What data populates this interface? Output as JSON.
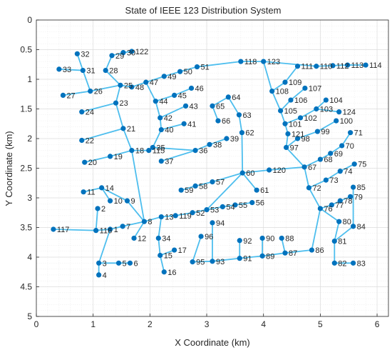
{
  "chart_data": {
    "type": "scatter",
    "title": "State of IEEE 123 Distribution System",
    "xlabel": "X Coordinate (km)",
    "ylabel": "Y Coordinate (km)",
    "xlim": [
      0,
      6.2
    ],
    "ylim": [
      0,
      5
    ],
    "y_reversed": true,
    "xticks": [
      0,
      1,
      2,
      3,
      4,
      5,
      6
    ],
    "yticks": [
      0,
      0.5,
      1,
      1.5,
      2,
      2.5,
      3,
      3.5,
      4,
      4.5,
      5
    ],
    "ytick_labels": [
      "0",
      "0.5",
      "1",
      "1.5",
      "2",
      "2.5",
      "3",
      "3.5",
      "4",
      "4.5",
      "5"
    ],
    "grid": true,
    "minor_grid": true,
    "node_color": "#0072BD",
    "edge_color": "#4DBEEE",
    "nodes": [
      {
        "label": "1",
        "x": 1.3,
        "y": 3.53
      },
      {
        "label": "2",
        "x": 1.08,
        "y": 3.18
      },
      {
        "label": "3",
        "x": 1.1,
        "y": 4.1
      },
      {
        "label": "4",
        "x": 1.1,
        "y": 4.3
      },
      {
        "label": "5",
        "x": 1.45,
        "y": 4.1
      },
      {
        "label": "6",
        "x": 1.65,
        "y": 4.1
      },
      {
        "label": "7",
        "x": 1.52,
        "y": 3.48
      },
      {
        "label": "8",
        "x": 1.9,
        "y": 3.4
      },
      {
        "label": "9",
        "x": 1.6,
        "y": 3.05
      },
      {
        "label": "10",
        "x": 1.3,
        "y": 3.05
      },
      {
        "label": "11",
        "x": 0.83,
        "y": 2.9
      },
      {
        "label": "12",
        "x": 1.72,
        "y": 3.68
      },
      {
        "label": "13",
        "x": 2.2,
        "y": 3.32
      },
      {
        "label": "14",
        "x": 1.15,
        "y": 2.83
      },
      {
        "label": "15",
        "x": 2.18,
        "y": 3.97
      },
      {
        "label": "16",
        "x": 2.25,
        "y": 4.25
      },
      {
        "label": "17",
        "x": 2.43,
        "y": 3.88
      },
      {
        "label": "18",
        "x": 1.68,
        "y": 2.2
      },
      {
        "label": "19",
        "x": 1.3,
        "y": 2.3
      },
      {
        "label": "20",
        "x": 0.85,
        "y": 2.4
      },
      {
        "label": "21",
        "x": 1.53,
        "y": 1.83
      },
      {
        "label": "22",
        "x": 0.8,
        "y": 2.03
      },
      {
        "label": "23",
        "x": 1.4,
        "y": 1.4
      },
      {
        "label": "24",
        "x": 0.8,
        "y": 1.55
      },
      {
        "label": "25",
        "x": 1.48,
        "y": 1.1
      },
      {
        "label": "26",
        "x": 0.95,
        "y": 1.2
      },
      {
        "label": "27",
        "x": 0.47,
        "y": 1.27
      },
      {
        "label": "28",
        "x": 1.22,
        "y": 0.85
      },
      {
        "label": "29",
        "x": 1.33,
        "y": 0.6
      },
      {
        "label": "30",
        "x": 1.53,
        "y": 0.55
      },
      {
        "label": "31",
        "x": 0.82,
        "y": 0.85
      },
      {
        "label": "32",
        "x": 0.72,
        "y": 0.57
      },
      {
        "label": "33",
        "x": 0.4,
        "y": 0.83
      },
      {
        "label": "34",
        "x": 2.15,
        "y": 3.68
      },
      {
        "label": "35",
        "x": 2.05,
        "y": 2.15
      },
      {
        "label": "36",
        "x": 2.8,
        "y": 2.2
      },
      {
        "label": "37",
        "x": 2.2,
        "y": 2.38
      },
      {
        "label": "38",
        "x": 3.05,
        "y": 2.1
      },
      {
        "label": "39",
        "x": 3.35,
        "y": 2.0
      },
      {
        "label": "40",
        "x": 2.2,
        "y": 1.85
      },
      {
        "label": "41",
        "x": 2.6,
        "y": 1.75
      },
      {
        "label": "42",
        "x": 2.18,
        "y": 1.65
      },
      {
        "label": "43",
        "x": 2.63,
        "y": 1.45
      },
      {
        "label": "44",
        "x": 2.1,
        "y": 1.37
      },
      {
        "label": "45",
        "x": 2.43,
        "y": 1.27
      },
      {
        "label": "46",
        "x": 2.73,
        "y": 1.15
      },
      {
        "label": "47",
        "x": 1.93,
        "y": 1.05
      },
      {
        "label": "48",
        "x": 1.68,
        "y": 1.13
      },
      {
        "label": "49",
        "x": 2.25,
        "y": 0.95
      },
      {
        "label": "50",
        "x": 2.53,
        "y": 0.87
      },
      {
        "label": "51",
        "x": 2.83,
        "y": 0.79
      },
      {
        "label": "52",
        "x": 2.75,
        "y": 3.25
      },
      {
        "label": "53",
        "x": 3.0,
        "y": 3.2
      },
      {
        "label": "54",
        "x": 3.28,
        "y": 3.15
      },
      {
        "label": "55",
        "x": 3.5,
        "y": 3.12
      },
      {
        "label": "56",
        "x": 3.8,
        "y": 3.08
      },
      {
        "label": "57",
        "x": 3.1,
        "y": 2.73
      },
      {
        "label": "58",
        "x": 2.8,
        "y": 2.8
      },
      {
        "label": "59",
        "x": 2.55,
        "y": 2.87
      },
      {
        "label": "60",
        "x": 3.63,
        "y": 2.58
      },
      {
        "label": "61",
        "x": 3.88,
        "y": 2.87
      },
      {
        "label": "62",
        "x": 3.62,
        "y": 1.9
      },
      {
        "label": "63",
        "x": 3.57,
        "y": 1.6
      },
      {
        "label": "64",
        "x": 3.38,
        "y": 1.3
      },
      {
        "label": "65",
        "x": 3.1,
        "y": 1.45
      },
      {
        "label": "66",
        "x": 3.2,
        "y": 1.7
      },
      {
        "label": "67",
        "x": 4.72,
        "y": 2.48
      },
      {
        "label": "68",
        "x": 5.0,
        "y": 2.35
      },
      {
        "label": "69",
        "x": 5.18,
        "y": 2.25
      },
      {
        "label": "70",
        "x": 5.38,
        "y": 2.12
      },
      {
        "label": "71",
        "x": 5.53,
        "y": 1.9
      },
      {
        "label": "72",
        "x": 4.8,
        "y": 2.83
      },
      {
        "label": "73",
        "x": 5.1,
        "y": 2.7
      },
      {
        "label": "74",
        "x": 5.35,
        "y": 2.55
      },
      {
        "label": "75",
        "x": 5.6,
        "y": 2.43
      },
      {
        "label": "76",
        "x": 5.0,
        "y": 3.18
      },
      {
        "label": "77",
        "x": 5.2,
        "y": 3.12
      },
      {
        "label": "78",
        "x": 5.35,
        "y": 3.05
      },
      {
        "label": "79",
        "x": 5.53,
        "y": 2.98
      },
      {
        "label": "80",
        "x": 5.33,
        "y": 3.4
      },
      {
        "label": "81",
        "x": 5.25,
        "y": 3.73
      },
      {
        "label": "82",
        "x": 5.25,
        "y": 4.1
      },
      {
        "label": "83",
        "x": 5.58,
        "y": 4.1
      },
      {
        "label": "84",
        "x": 5.58,
        "y": 3.48
      },
      {
        "label": "85",
        "x": 5.58,
        "y": 2.82
      },
      {
        "label": "86",
        "x": 4.85,
        "y": 3.88
      },
      {
        "label": "87",
        "x": 4.38,
        "y": 3.93
      },
      {
        "label": "88",
        "x": 4.32,
        "y": 3.68
      },
      {
        "label": "89",
        "x": 3.98,
        "y": 3.98
      },
      {
        "label": "90",
        "x": 3.98,
        "y": 3.68
      },
      {
        "label": "91",
        "x": 3.58,
        "y": 4.02
      },
      {
        "label": "92",
        "x": 3.58,
        "y": 3.72
      },
      {
        "label": "93",
        "x": 3.1,
        "y": 4.07
      },
      {
        "label": "94",
        "x": 3.1,
        "y": 3.42
      },
      {
        "label": "95",
        "x": 2.75,
        "y": 4.08
      },
      {
        "label": "96",
        "x": 2.9,
        "y": 3.65
      },
      {
        "label": "97",
        "x": 4.4,
        "y": 2.15
      },
      {
        "label": "98",
        "x": 4.6,
        "y": 2.0
      },
      {
        "label": "99",
        "x": 4.95,
        "y": 1.88
      },
      {
        "label": "100",
        "x": 5.28,
        "y": 1.7
      },
      {
        "label": "101",
        "x": 4.38,
        "y": 1.75
      },
      {
        "label": "102",
        "x": 4.65,
        "y": 1.65
      },
      {
        "label": "103",
        "x": 4.93,
        "y": 1.5
      },
      {
        "label": "104",
        "x": 5.1,
        "y": 1.35
      },
      {
        "label": "105",
        "x": 4.3,
        "y": 1.53
      },
      {
        "label": "106",
        "x": 4.48,
        "y": 1.35
      },
      {
        "label": "107",
        "x": 4.73,
        "y": 1.15
      },
      {
        "label": "108",
        "x": 4.15,
        "y": 1.2
      },
      {
        "label": "109",
        "x": 4.38,
        "y": 1.05
      },
      {
        "label": "110",
        "x": 4.93,
        "y": 0.78
      },
      {
        "label": "111",
        "x": 4.6,
        "y": 0.78
      },
      {
        "label": "112",
        "x": 5.22,
        "y": 0.77
      },
      {
        "label": "113",
        "x": 5.48,
        "y": 0.76
      },
      {
        "label": "114",
        "x": 5.8,
        "y": 0.76
      },
      {
        "label": "115",
        "x": 1.98,
        "y": 2.2
      },
      {
        "label": "116",
        "x": 1.05,
        "y": 3.55
      },
      {
        "label": "117",
        "x": 0.3,
        "y": 3.53
      },
      {
        "label": "118",
        "x": 3.6,
        "y": 0.7
      },
      {
        "label": "119",
        "x": 2.45,
        "y": 3.3
      },
      {
        "label": "120",
        "x": 4.1,
        "y": 2.53
      },
      {
        "label": "121",
        "x": 4.43,
        "y": 1.92
      },
      {
        "label": "122",
        "x": 1.68,
        "y": 0.53
      },
      {
        "label": "123",
        "x": 4.0,
        "y": 0.7
      },
      {
        "label": "124",
        "x": 5.33,
        "y": 1.55
      }
    ],
    "edges": [
      [
        "117",
        "116"
      ],
      [
        "116",
        "1"
      ],
      [
        "116",
        "2"
      ],
      [
        "1",
        "7"
      ],
      [
        "1",
        "3"
      ],
      [
        "3",
        "4"
      ],
      [
        "3",
        "5"
      ],
      [
        "5",
        "6"
      ],
      [
        "7",
        "8"
      ],
      [
        "8",
        "12"
      ],
      [
        "8",
        "9"
      ],
      [
        "9",
        "14"
      ],
      [
        "14",
        "10"
      ],
      [
        "14",
        "11"
      ],
      [
        "8",
        "13"
      ],
      [
        "8",
        "18"
      ],
      [
        "13",
        "34"
      ],
      [
        "34",
        "15"
      ],
      [
        "15",
        "16"
      ],
      [
        "15",
        "17"
      ],
      [
        "13",
        "119"
      ],
      [
        "119",
        "52"
      ],
      [
        "52",
        "53"
      ],
      [
        "53",
        "54"
      ],
      [
        "54",
        "55"
      ],
      [
        "55",
        "56"
      ],
      [
        "53",
        "60"
      ],
      [
        "60",
        "57"
      ],
      [
        "57",
        "58"
      ],
      [
        "58",
        "59"
      ],
      [
        "60",
        "61"
      ],
      [
        "60",
        "62"
      ],
      [
        "62",
        "63"
      ],
      [
        "63",
        "64"
      ],
      [
        "64",
        "65"
      ],
      [
        "65",
        "66"
      ],
      [
        "60",
        "120"
      ],
      [
        "120",
        "67"
      ],
      [
        "67",
        "68"
      ],
      [
        "68",
        "69"
      ],
      [
        "69",
        "70"
      ],
      [
        "70",
        "71"
      ],
      [
        "67",
        "72"
      ],
      [
        "72",
        "73"
      ],
      [
        "73",
        "74"
      ],
      [
        "74",
        "75"
      ],
      [
        "72",
        "76"
      ],
      [
        "76",
        "77"
      ],
      [
        "77",
        "78"
      ],
      [
        "78",
        "79"
      ],
      [
        "76",
        "86"
      ],
      [
        "86",
        "87"
      ],
      [
        "87",
        "88"
      ],
      [
        "87",
        "89"
      ],
      [
        "89",
        "90"
      ],
      [
        "89",
        "91"
      ],
      [
        "91",
        "92"
      ],
      [
        "91",
        "93"
      ],
      [
        "93",
        "94"
      ],
      [
        "93",
        "95"
      ],
      [
        "95",
        "96"
      ],
      [
        "76",
        "80"
      ],
      [
        "80",
        "81"
      ],
      [
        "81",
        "82"
      ],
      [
        "82",
        "83"
      ],
      [
        "81",
        "84"
      ],
      [
        "84",
        "85"
      ],
      [
        "67",
        "97"
      ],
      [
        "97",
        "98"
      ],
      [
        "98",
        "99"
      ],
      [
        "99",
        "100"
      ],
      [
        "97",
        "121"
      ],
      [
        "121",
        "101"
      ],
      [
        "101",
        "102"
      ],
      [
        "102",
        "103"
      ],
      [
        "103",
        "104"
      ],
      [
        "103",
        "124"
      ],
      [
        "101",
        "105"
      ],
      [
        "105",
        "106"
      ],
      [
        "106",
        "107"
      ],
      [
        "105",
        "108"
      ],
      [
        "108",
        "109"
      ],
      [
        "109",
        "111"
      ],
      [
        "108",
        "123"
      ],
      [
        "123",
        "110"
      ],
      [
        "110",
        "112"
      ],
      [
        "112",
        "113"
      ],
      [
        "113",
        "114"
      ],
      [
        "123",
        "118"
      ],
      [
        "118",
        "51"
      ],
      [
        "51",
        "50"
      ],
      [
        "50",
        "49"
      ],
      [
        "49",
        "47"
      ],
      [
        "47",
        "48"
      ],
      [
        "48",
        "25"
      ],
      [
        "47",
        "44"
      ],
      [
        "44",
        "45"
      ],
      [
        "45",
        "46"
      ],
      [
        "44",
        "42"
      ],
      [
        "42",
        "43"
      ],
      [
        "42",
        "40"
      ],
      [
        "40",
        "41"
      ],
      [
        "40",
        "35"
      ],
      [
        "18",
        "19"
      ],
      [
        "19",
        "20"
      ],
      [
        "18",
        "21"
      ],
      [
        "21",
        "22"
      ],
      [
        "21",
        "23"
      ],
      [
        "23",
        "24"
      ],
      [
        "23",
        "25"
      ],
      [
        "25",
        "26"
      ],
      [
        "26",
        "27"
      ],
      [
        "26",
        "31"
      ],
      [
        "31",
        "32"
      ],
      [
        "31",
        "33"
      ],
      [
        "25",
        "28"
      ],
      [
        "28",
        "29"
      ],
      [
        "29",
        "30"
      ],
      [
        "30",
        "122"
      ],
      [
        "18",
        "115"
      ],
      [
        "115",
        "35"
      ],
      [
        "35",
        "36"
      ],
      [
        "36",
        "37"
      ],
      [
        "36",
        "38"
      ],
      [
        "38",
        "39"
      ]
    ]
  }
}
